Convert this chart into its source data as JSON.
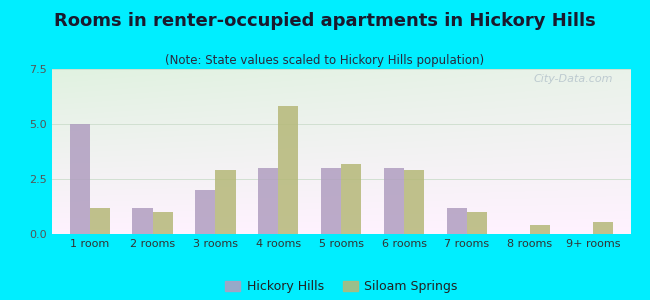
{
  "title": "Rooms in renter-occupied apartments in Hickory Hills",
  "subtitle": "(Note: State values scaled to Hickory Hills population)",
  "categories": [
    "1 room",
    "2 rooms",
    "3 rooms",
    "4 rooms",
    "5 rooms",
    "6 rooms",
    "7 rooms",
    "8 rooms",
    "9+ rooms"
  ],
  "hickory_hills": [
    5.0,
    1.2,
    2.0,
    3.0,
    3.0,
    3.0,
    1.2,
    0.0,
    0.0
  ],
  "siloam_springs": [
    1.2,
    1.0,
    2.9,
    5.8,
    3.2,
    2.9,
    1.0,
    0.4,
    0.55
  ],
  "hickory_color": "#b09ec0",
  "siloam_color": "#b5b878",
  "bg_outer": "#00eeff",
  "ylim": [
    0,
    7.5
  ],
  "yticks": [
    0,
    2.5,
    5,
    7.5
  ],
  "bar_width": 0.32,
  "title_fontsize": 13,
  "subtitle_fontsize": 8.5,
  "tick_fontsize": 8,
  "legend_fontsize": 9,
  "watermark": "City-Data.com"
}
